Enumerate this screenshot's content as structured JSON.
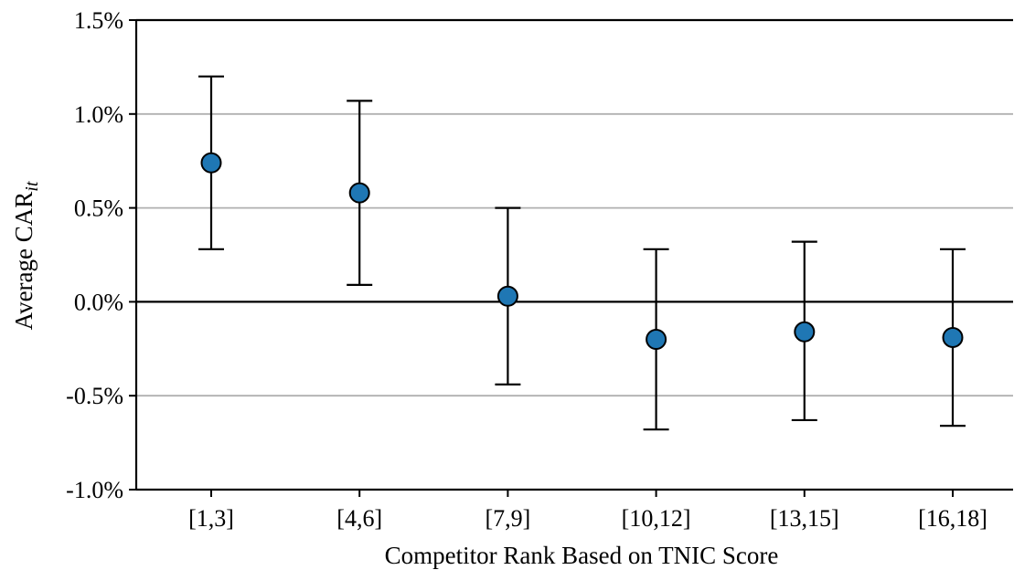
{
  "chart_data": {
    "type": "scatter",
    "xlabel": "Competitor Rank Based on TNIC Score",
    "ylabel_main": "Average CAR",
    "ylabel_sub": "it",
    "categories": [
      "[1,3]",
      "[4,6]",
      "[7,9]",
      "[10,12]",
      "[13,15]",
      "[16,18]"
    ],
    "series": [
      {
        "values": [
          0.74,
          0.58,
          0.03,
          -0.2,
          -0.16,
          -0.19
        ],
        "lower": [
          0.28,
          0.09,
          -0.44,
          -0.68,
          -0.63,
          -0.66
        ],
        "upper": [
          1.2,
          1.07,
          0.5,
          0.28,
          0.32,
          0.28
        ]
      }
    ],
    "ylim": [
      -1.0,
      1.5
    ],
    "yticks": [
      -1.0,
      -0.5,
      0.0,
      0.5,
      1.0,
      1.5
    ],
    "ytick_labels": [
      "-1.0%",
      "-0.5%",
      "0.0%",
      "0.5%",
      "1.0%",
      "1.5%"
    ],
    "grid": "horizontal",
    "marker_color": "#1f77b4",
    "errorbar_color": "#000000",
    "grid_color": "#b0b0b0"
  }
}
